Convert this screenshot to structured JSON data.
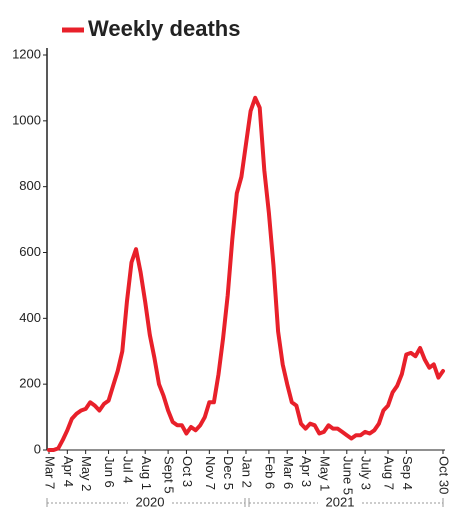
{
  "chart_data": {
    "type": "line",
    "legend": "top-left",
    "categories": [
      "Mar 7",
      null,
      null,
      null,
      "Apr 4",
      null,
      null,
      null,
      "May 2",
      null,
      null,
      null,
      null,
      "Jun 6",
      null,
      null,
      null,
      "Jul 4",
      null,
      null,
      null,
      "Aug 1",
      null,
      null,
      null,
      null,
      "Sept 5",
      null,
      null,
      null,
      "Oct 3",
      null,
      null,
      null,
      null,
      "Nov 7",
      null,
      null,
      null,
      "Dec 5",
      null,
      null,
      null,
      "Jan 2",
      null,
      null,
      null,
      null,
      "Feb 6",
      null,
      null,
      null,
      "Mar 6",
      null,
      null,
      null,
      "Apr 3",
      null,
      null,
      null,
      "May 1",
      null,
      null,
      null,
      null,
      "June 5",
      null,
      null,
      null,
      "July 3",
      null,
      null,
      null,
      null,
      "Aug 7",
      null,
      null,
      null,
      "Sep 4",
      null,
      null,
      null,
      null,
      null,
      null,
      null,
      "Oct 30"
    ],
    "series": [
      {
        "name": "Weekly deaths",
        "color": "#e8202a",
        "values": [
          0,
          0,
          5,
          30,
          60,
          95,
          110,
          120,
          125,
          145,
          135,
          120,
          140,
          150,
          195,
          240,
          300,
          450,
          570,
          610,
          540,
          450,
          350,
          280,
          200,
          165,
          120,
          85,
          75,
          75,
          50,
          70,
          60,
          75,
          100,
          145,
          145,
          230,
          340,
          470,
          640,
          780,
          830,
          930,
          1030,
          1070,
          1040,
          850,
          720,
          560,
          360,
          260,
          200,
          145,
          135,
          80,
          65,
          80,
          75,
          50,
          55,
          75,
          65,
          65,
          55,
          45,
          35,
          45,
          45,
          55,
          50,
          60,
          80,
          120,
          135,
          175,
          195,
          230,
          290,
          295,
          285,
          310,
          275,
          250,
          260,
          220,
          240
        ]
      }
    ],
    "ylim": [
      0,
      1200
    ],
    "yticks": [
      0,
      200,
      400,
      600,
      800,
      1000,
      1200
    ],
    "annotations": [
      "2020",
      "2021"
    ]
  }
}
